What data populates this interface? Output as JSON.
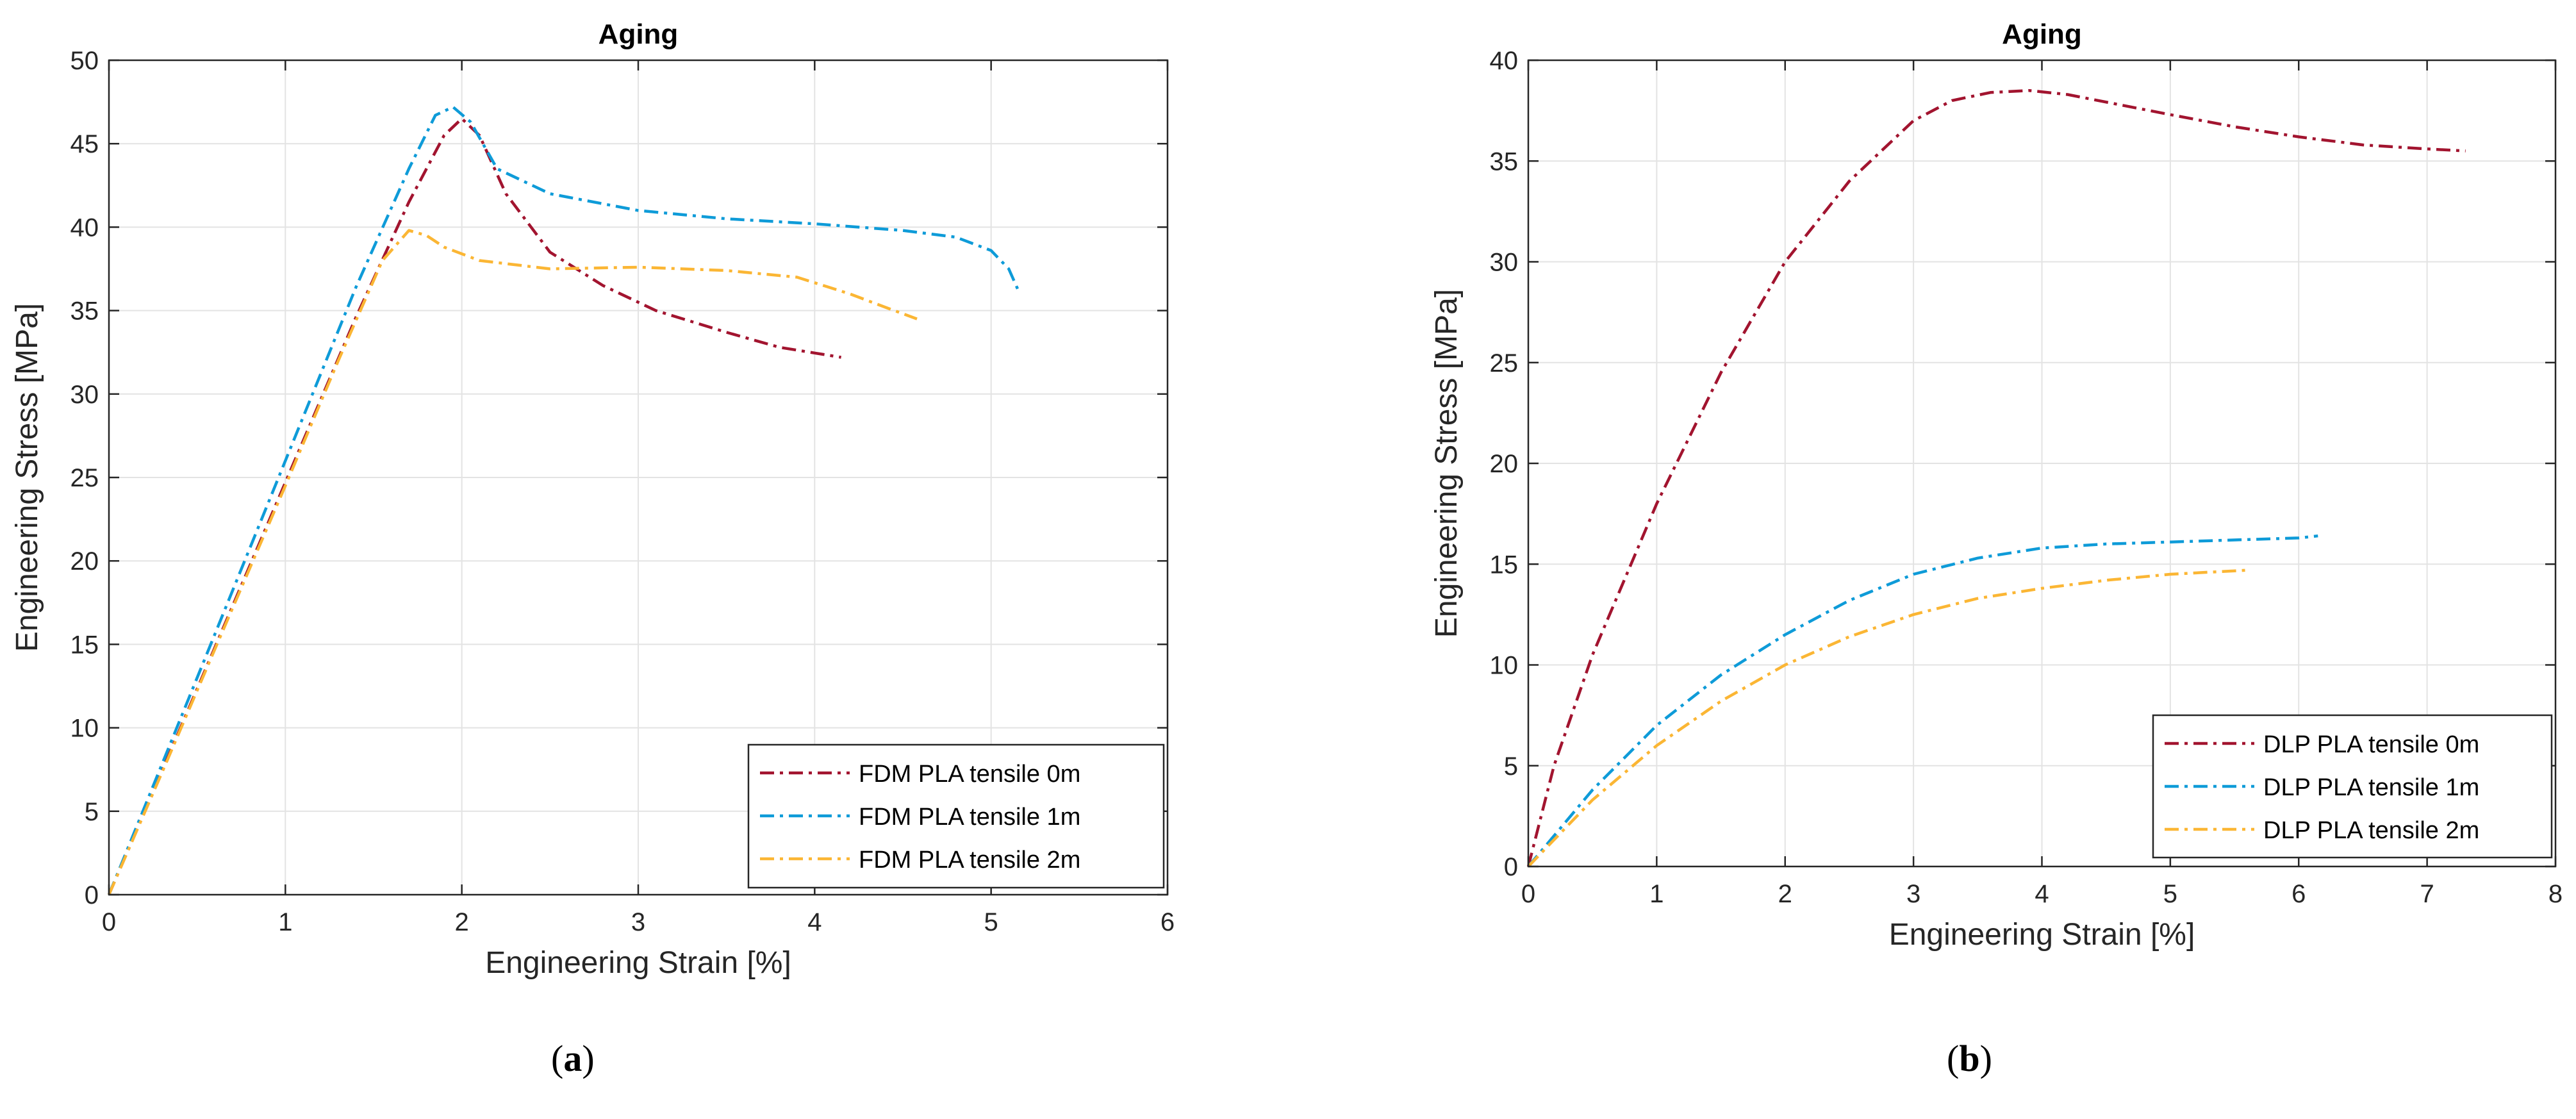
{
  "chart_data": [
    {
      "type": "line",
      "title": "Aging",
      "xlabel": "Engineering Strain [%]",
      "ylabel": "Engineering Stress [MPa]",
      "xlim": [
        0,
        6
      ],
      "ylim": [
        0,
        50
      ],
      "xticks": [
        0,
        1,
        2,
        3,
        4,
        5,
        6
      ],
      "yticks": [
        0,
        5,
        10,
        15,
        20,
        25,
        30,
        35,
        40,
        45,
        50
      ],
      "grid": true,
      "legend_position": "bottom-right",
      "series": [
        {
          "name": "FDM PLA tensile 0m",
          "color": "#A2142F",
          "x": [
            0,
            0.3,
            0.6,
            1.0,
            1.4,
            1.7,
            1.9,
            2.0,
            2.1,
            2.25,
            2.5,
            2.8,
            3.1,
            3.5,
            3.8,
            4.15
          ],
          "y": [
            0,
            7.4,
            14.8,
            24.7,
            34.6,
            41.5,
            45.5,
            46.5,
            45.5,
            42.0,
            38.5,
            36.5,
            35.0,
            33.7,
            32.8,
            32.2
          ]
        },
        {
          "name": "FDM PLA tensile 1m",
          "color": "#0072BD",
          "x": [
            0,
            0.3,
            0.6,
            1.0,
            1.4,
            1.7,
            1.85,
            1.95,
            2.05,
            2.2,
            2.5,
            3.0,
            3.5,
            4.0,
            4.5,
            4.8,
            5.0,
            5.1,
            5.15
          ],
          "y": [
            0,
            7.8,
            15.6,
            26.0,
            36.4,
            43.5,
            46.7,
            47.2,
            46.3,
            43.5,
            42.0,
            41.0,
            40.5,
            40.2,
            39.8,
            39.4,
            38.6,
            37.5,
            36.3
          ],
          "render_color": "#0e9bd8"
        },
        {
          "name": "FDM PLA tensile 2m",
          "color": "#EDB120",
          "x": [
            0,
            0.3,
            0.6,
            1.0,
            1.3,
            1.55,
            1.7,
            1.8,
            1.9,
            2.1,
            2.5,
            3.0,
            3.5,
            3.9,
            4.2,
            4.4,
            4.58
          ],
          "y": [
            0,
            7.3,
            14.7,
            24.5,
            32.0,
            38.0,
            39.8,
            39.5,
            38.8,
            38.0,
            37.5,
            37.6,
            37.4,
            37.0,
            36.0,
            35.2,
            34.5
          ],
          "render_color": "#fbb634"
        }
      ]
    },
    {
      "type": "line",
      "title": "Aging",
      "xlabel": "Engineering Strain [%]",
      "ylabel": "Engineering Stress [MPa]",
      "xlim": [
        0,
        8
      ],
      "ylim": [
        0,
        40
      ],
      "xticks": [
        0,
        1,
        2,
        3,
        4,
        5,
        6,
        7,
        8
      ],
      "yticks": [
        0,
        5,
        10,
        15,
        20,
        25,
        30,
        35,
        40
      ],
      "grid": true,
      "legend_position": "bottom-right",
      "series": [
        {
          "name": "DLP PLA tensile 0m",
          "color": "#A2142F",
          "x": [
            0,
            0.2,
            0.5,
            1.0,
            1.5,
            2.0,
            2.5,
            3.0,
            3.3,
            3.6,
            3.9,
            4.2,
            4.6,
            5.0,
            5.5,
            6.0,
            6.5,
            7.0,
            7.3
          ],
          "y": [
            0,
            5.0,
            10.5,
            18.0,
            24.5,
            30.0,
            34.0,
            37.0,
            38.0,
            38.4,
            38.5,
            38.3,
            37.8,
            37.3,
            36.7,
            36.2,
            35.8,
            35.6,
            35.5
          ]
        },
        {
          "name": "DLP PLA tensile 1m",
          "color": "#0072BD",
          "x": [
            0,
            0.5,
            1.0,
            1.5,
            2.0,
            2.5,
            3.0,
            3.5,
            4.0,
            4.5,
            5.0,
            5.5,
            6.0,
            6.15
          ],
          "y": [
            0,
            3.8,
            7.0,
            9.5,
            11.5,
            13.2,
            14.5,
            15.3,
            15.8,
            16.0,
            16.1,
            16.2,
            16.3,
            16.4
          ],
          "render_color": "#0e9bd8"
        },
        {
          "name": "DLP PLA tensile 2m",
          "color": "#EDB120",
          "x": [
            0,
            0.5,
            1.0,
            1.5,
            2.0,
            2.5,
            3.0,
            3.5,
            4.0,
            4.5,
            5.0,
            5.3,
            5.6
          ],
          "y": [
            0,
            3.3,
            6.0,
            8.2,
            10.0,
            11.4,
            12.5,
            13.3,
            13.8,
            14.2,
            14.5,
            14.6,
            14.7
          ],
          "render_color": "#fbb634"
        }
      ]
    }
  ],
  "captions": {
    "a": {
      "open": "(",
      "letter": "a",
      "close": ")"
    },
    "b": {
      "open": "(",
      "letter": "b",
      "close": ")"
    }
  }
}
